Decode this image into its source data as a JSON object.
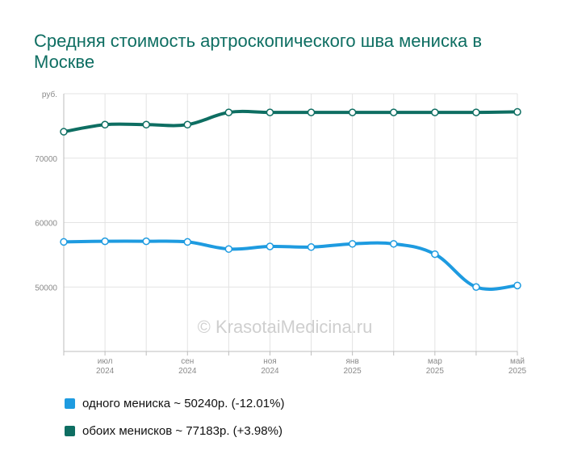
{
  "title": "Средняя стоимость артроскопического шва мениска в Москве",
  "watermark": "© KrasotaiMedicina.ru",
  "chart_data": {
    "type": "line",
    "ylabel": "руб.",
    "ylim": [
      40000,
      80000
    ],
    "yticks": [
      50000,
      60000,
      70000
    ],
    "x": [
      "2024-06",
      "2024-07",
      "2024-08",
      "2024-09",
      "2024-10",
      "2024-11",
      "2024-12",
      "2025-01",
      "2025-02",
      "2025-03",
      "2025-04",
      "2025-05"
    ],
    "xtick_labels": [
      {
        "month": "июл",
        "year": "2024"
      },
      {
        "month": "сен",
        "year": "2024"
      },
      {
        "month": "ноя",
        "year": "2024"
      },
      {
        "month": "янв",
        "year": "2025"
      },
      {
        "month": "мар",
        "year": "2025"
      },
      {
        "month": "май",
        "year": "2025"
      }
    ],
    "grid": true,
    "legend_position": "bottom",
    "series": [
      {
        "name": "одного мениска",
        "color": "#1e9be0",
        "values": [
          57000,
          57100,
          57100,
          57000,
          55900,
          56300,
          56200,
          56700,
          56700,
          55100,
          50000,
          50240
        ]
      },
      {
        "name": "обоих менисков",
        "color": "#0e6e62",
        "values": [
          74100,
          75200,
          75200,
          75200,
          77100,
          77100,
          77100,
          77100,
          77100,
          77100,
          77100,
          77183
        ]
      }
    ]
  },
  "legend": [
    {
      "label": "одного мениска ~ 50240р. (-12.01%)",
      "color": "#1e9be0"
    },
    {
      "label": "обоих менисков ~ 77183р. (+3.98%)",
      "color": "#0e6e62"
    }
  ]
}
